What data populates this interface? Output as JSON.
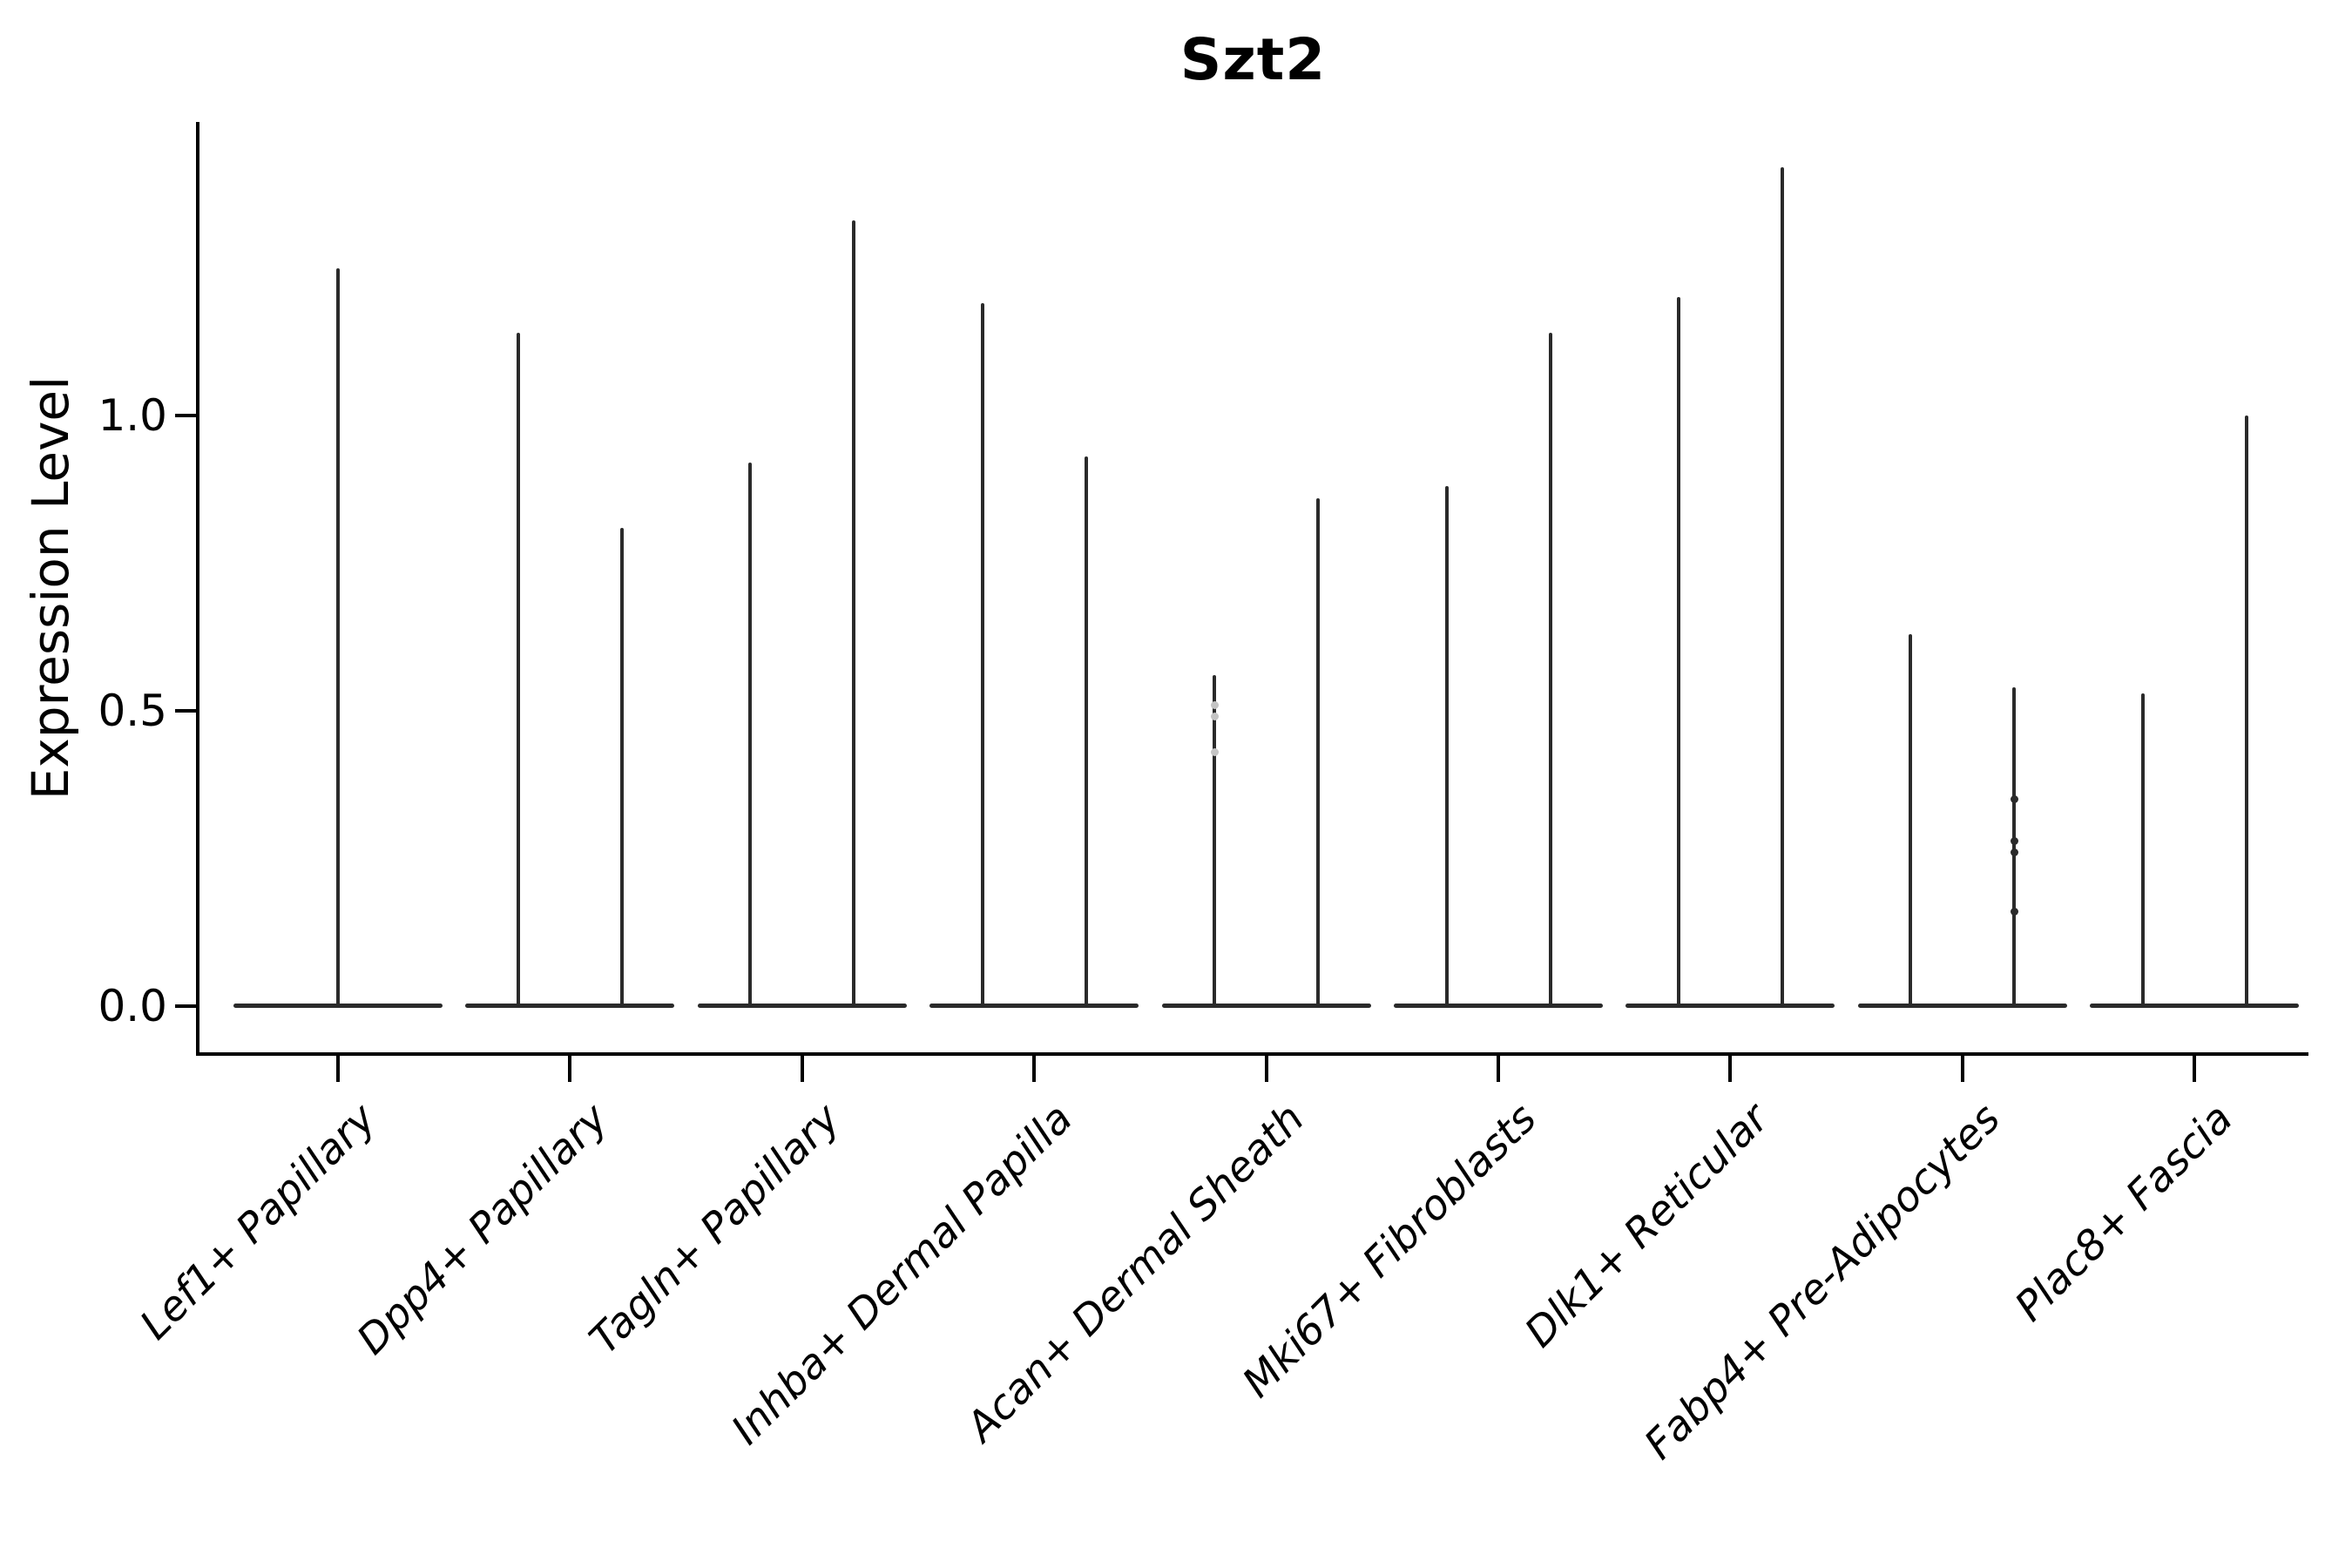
{
  "figure": {
    "title": "Szt2",
    "ylabel": "Expression Level"
  },
  "chart_data": {
    "type": "violin",
    "style": "needle-thin violins (near-zero density bodies) with a single max-expression spike per violin; flat collapsed violin body at y=0",
    "title": "Szt2",
    "xlabel": "",
    "ylabel": "Expression Level",
    "ylim": [
      -0.08,
      1.5
    ],
    "yticks_labels": [
      "0.0",
      "0.5",
      "1.0"
    ],
    "yticks_values": [
      0.0,
      0.5,
      1.0
    ],
    "grid": false,
    "legend": "none",
    "categories": [
      "Lef1+ Papillary",
      "Dpp4+ Papillary",
      "Tagln+ Papillary",
      "Inhba+ Dermal Papilla",
      "Acan+ Dermal Sheath",
      "Mki67+ Fibroblasts",
      "Dlk1+ Reticular",
      "Fabp4+ Pre-Adipocytes",
      "Plac8+ Fascia"
    ],
    "violins": [
      {
        "category": "Lef1+ Papillary",
        "spike_max_values": [
          1.25
        ]
      },
      {
        "category": "Dpp4+ Papillary",
        "spike_max_values": [
          1.14,
          0.81
        ]
      },
      {
        "category": "Tagln+ Papillary",
        "spike_max_values": [
          0.92,
          1.33
        ]
      },
      {
        "category": "Inhba+ Dermal Papilla",
        "spike_max_values": [
          1.19,
          0.93
        ]
      },
      {
        "category": "Acan+ Dermal Sheath",
        "spike_max_values": [
          0.56,
          0.86
        ]
      },
      {
        "category": "Mki67+ Fibroblasts",
        "spike_max_values": [
          0.88,
          1.14
        ]
      },
      {
        "category": "Dlk1+ Reticular",
        "spike_max_values": [
          1.2,
          1.42
        ]
      },
      {
        "category": "Fabp4+ Pre-Adipocytes",
        "spike_max_values": [
          0.63,
          0.54
        ]
      },
      {
        "category": "Plac8+ Fascia",
        "spike_max_values": [
          0.53,
          1.0
        ]
      }
    ],
    "scatter_points": [
      {
        "category_index": 4,
        "violin_index": 0,
        "values": [
          0.51,
          0.49,
          0.43
        ],
        "faint": true
      },
      {
        "category_index": 7,
        "violin_index": 1,
        "values": [
          0.35,
          0.28,
          0.26,
          0.16
        ],
        "faint": false
      }
    ],
    "colors": {
      "violin_stroke": "#2a2a2a",
      "axis": "#000000",
      "text": "#000000",
      "faint_point": "#c4c4c4",
      "background": "#ffffff"
    }
  }
}
